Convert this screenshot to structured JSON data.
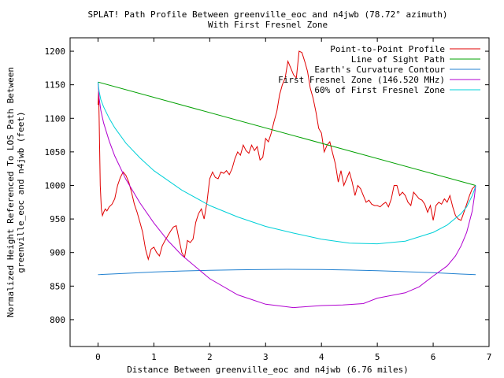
{
  "chart_data": {
    "type": "line",
    "title": "SPLAT! Path Profile Between greenville_eoc and n4jwb (78.72° azimuth)",
    "subtitle": "With First Fresnel Zone",
    "xlabel": "Distance Between greenville_eoc and n4jwb (6.76 miles)",
    "ylabel_line1": "Normalized Height Referenced To LOS Path Between",
    "ylabel_line2": "greenville_eoc and n4jwb (feet)",
    "xlim": [
      -0.5,
      7
    ],
    "ylim": [
      760,
      1220
    ],
    "x_ticks": [
      "0",
      "1",
      "2",
      "3",
      "4",
      "5",
      "6",
      "7"
    ],
    "y_ticks": [
      "800",
      "850",
      "900",
      "950",
      "1000",
      "1050",
      "1100",
      "1150",
      "1200"
    ],
    "legend_position": "top-right",
    "grid": false,
    "series": [
      {
        "name": "Point-to-Point Profile",
        "color": "#e00000",
        "x": [
          0,
          0.01,
          0.02,
          0.04,
          0.06,
          0.08,
          0.1,
          0.13,
          0.16,
          0.2,
          0.25,
          0.3,
          0.35,
          0.4,
          0.45,
          0.5,
          0.55,
          0.6,
          0.65,
          0.7,
          0.75,
          0.8,
          0.85,
          0.9,
          0.95,
          1.0,
          1.05,
          1.1,
          1.15,
          1.2,
          1.25,
          1.3,
          1.35,
          1.4,
          1.45,
          1.5,
          1.55,
          1.6,
          1.65,
          1.7,
          1.75,
          1.8,
          1.85,
          1.9,
          1.95,
          2.0,
          2.05,
          2.1,
          2.15,
          2.2,
          2.25,
          2.3,
          2.35,
          2.4,
          2.45,
          2.5,
          2.55,
          2.6,
          2.65,
          2.7,
          2.75,
          2.8,
          2.85,
          2.9,
          2.95,
          3.0,
          3.05,
          3.1,
          3.15,
          3.2,
          3.25,
          3.3,
          3.35,
          3.4,
          3.45,
          3.5,
          3.55,
          3.6,
          3.65,
          3.7,
          3.75,
          3.8,
          3.85,
          3.9,
          3.95,
          4.0,
          4.05,
          4.1,
          4.15,
          4.2,
          4.25,
          4.3,
          4.35,
          4.4,
          4.45,
          4.5,
          4.55,
          4.6,
          4.65,
          4.7,
          4.75,
          4.8,
          4.85,
          4.9,
          4.95,
          5.0,
          5.05,
          5.1,
          5.15,
          5.2,
          5.25,
          5.3,
          5.35,
          5.4,
          5.45,
          5.5,
          5.55,
          5.6,
          5.65,
          5.7,
          5.75,
          5.8,
          5.85,
          5.9,
          5.95,
          6.0,
          6.05,
          6.1,
          6.15,
          6.2,
          6.25,
          6.3,
          6.35,
          6.4,
          6.45,
          6.5,
          6.55,
          6.6,
          6.65,
          6.7,
          6.76
        ],
        "values": [
          1120,
          1140,
          1100,
          1000,
          965,
          955,
          960,
          965,
          962,
          968,
          972,
          980,
          1000,
          1012,
          1020,
          1015,
          1005,
          990,
          972,
          960,
          945,
          930,
          905,
          890,
          905,
          908,
          900,
          895,
          910,
          918,
          925,
          932,
          938,
          940,
          920,
          900,
          893,
          918,
          915,
          920,
          945,
          958,
          965,
          950,
          975,
          1010,
          1020,
          1012,
          1010,
          1020,
          1018,
          1022,
          1016,
          1025,
          1040,
          1050,
          1045,
          1060,
          1052,
          1048,
          1060,
          1052,
          1058,
          1038,
          1042,
          1070,
          1065,
          1078,
          1095,
          1110,
          1135,
          1150,
          1160,
          1185,
          1175,
          1165,
          1160,
          1200,
          1198,
          1185,
          1170,
          1145,
          1130,
          1110,
          1085,
          1078,
          1050,
          1060,
          1065,
          1048,
          1032,
          1005,
          1022,
          1000,
          1010,
          1020,
          1005,
          985,
          1000,
          995,
          985,
          975,
          978,
          972,
          970,
          970,
          968,
          972,
          975,
          968,
          980,
          1000,
          1000,
          985,
          990,
          985,
          975,
          970,
          990,
          985,
          980,
          978,
          972,
          960,
          970,
          948,
          970,
          975,
          972,
          980,
          975,
          985,
          968,
          955,
          950,
          948,
          960,
          972,
          985,
          995,
          1000
        ]
      },
      {
        "name": "Line of Sight Path",
        "color": "#00a000",
        "x": [
          0,
          6.76
        ],
        "values": [
          1154,
          1000
        ]
      },
      {
        "name": "Earth's Curvature Contour",
        "color": "#2080d0",
        "x": [
          0,
          0.5,
          1,
          1.5,
          2,
          2.5,
          3,
          3.38,
          4,
          4.5,
          5,
          5.5,
          6,
          6.5,
          6.76
        ],
        "values": [
          867,
          869,
          871,
          872.5,
          873.5,
          874.3,
          874.8,
          875,
          874.7,
          874,
          873,
          871.5,
          870,
          868,
          867
        ]
      },
      {
        "name": "First Fresnel Zone (146.520 MHz)",
        "color": "#b000d0",
        "x": [
          0,
          0.02,
          0.05,
          0.1,
          0.2,
          0.3,
          0.5,
          0.75,
          1.0,
          1.25,
          1.5,
          2.0,
          2.5,
          3.0,
          3.5,
          4.0,
          4.38,
          4.75,
          5.0,
          5.5,
          5.75,
          6.0,
          6.25,
          6.4,
          6.5,
          6.6,
          6.7,
          6.74,
          6.76
        ],
        "values": [
          1154,
          1130,
          1112,
          1093,
          1066,
          1044,
          1009,
          974,
          944,
          918,
          896,
          861,
          837,
          823,
          818,
          821,
          822,
          824,
          832,
          840,
          849,
          865,
          880,
          895,
          910,
          930,
          962,
          985,
          1000
        ]
      },
      {
        "name": "60% of First Fresnel Zone",
        "color": "#00d0d8",
        "x": [
          0,
          0.02,
          0.05,
          0.1,
          0.2,
          0.3,
          0.5,
          0.75,
          1.0,
          1.5,
          2.0,
          2.5,
          3.0,
          3.5,
          4.0,
          4.5,
          5.0,
          5.5,
          6.0,
          6.25,
          6.5,
          6.6,
          6.7,
          6.74,
          6.76
        ],
        "values": [
          1154,
          1140,
          1128,
          1117,
          1100,
          1086,
          1063,
          1041,
          1022,
          993,
          970,
          953,
          939,
          929,
          920,
          914,
          913,
          917,
          930,
          941,
          958,
          968,
          985,
          994,
          1000
        ]
      }
    ]
  }
}
